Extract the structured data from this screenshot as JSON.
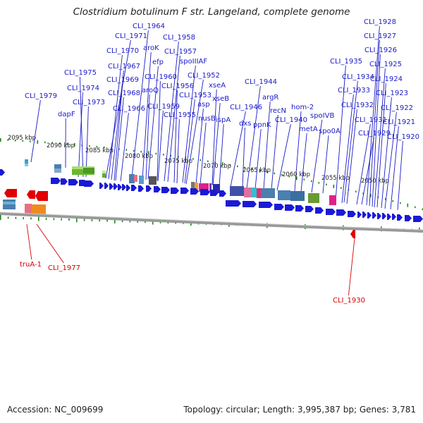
{
  "title": "Clostridium botulinum F str. Langeland, complete genome",
  "footer": {
    "accession": "Accession: NC_009699",
    "summary": "Topology: circular; Length: 3,995,387 bp; Genes: 3,781"
  },
  "colors": {
    "forward_gene": "#1a1ad6",
    "reverse_gene": "#e00000",
    "label_forward": "#1a1ac8",
    "label_reverse": "#d40000",
    "tick": "#1a8a1a",
    "backbone": "#888888"
  },
  "kbp_ticks": [
    "2095 kbp",
    "2090 kbp",
    "2085 kbp",
    "2080 kbp",
    "2075 kbp",
    "2070 kbp",
    "2065 kbp",
    "2060 kbp",
    "2055 kbp",
    "2050 kbp"
  ],
  "forward_labels": [
    "CLI_1979",
    "dapF",
    "CLI_1975",
    "CLI_1974",
    "CLI_1973",
    "CLI_1971",
    "CLI_1970",
    "CLI_1969",
    "CLI_1968",
    "CLI_1967",
    "CLI_1966",
    "CLI_1964",
    "aroK",
    "efp",
    "aroQ",
    "CLI_1960",
    "CLI_1959",
    "CLI_1958",
    "CLI_1957",
    "spoIIIAF",
    "CLI_1956",
    "CLI_1955",
    "CLI_1953",
    "CLI_1952",
    "asp",
    "xseA",
    "nusB",
    "xseB",
    "ispA",
    "CLI_1946",
    "dxs",
    "CLI_1944",
    "argR",
    "ppnK",
    "recN",
    "CLI_1940",
    "hom-2",
    "metA",
    "spoIVB",
    "spo0A",
    "CLI_1935",
    "CLI_1934",
    "CLI_1933",
    "CLI_1932",
    "CLI_1931",
    "CLI_1929",
    "CLI_1928",
    "CLI_1927",
    "CLI_1926",
    "CLI_1925",
    "CLI_1924",
    "CLI_1923",
    "CLI_1922",
    "CLI_1921",
    "CLI_1920"
  ],
  "reverse_labels": [
    "truA-1",
    "CLI_1977",
    "CLI_1930"
  ]
}
